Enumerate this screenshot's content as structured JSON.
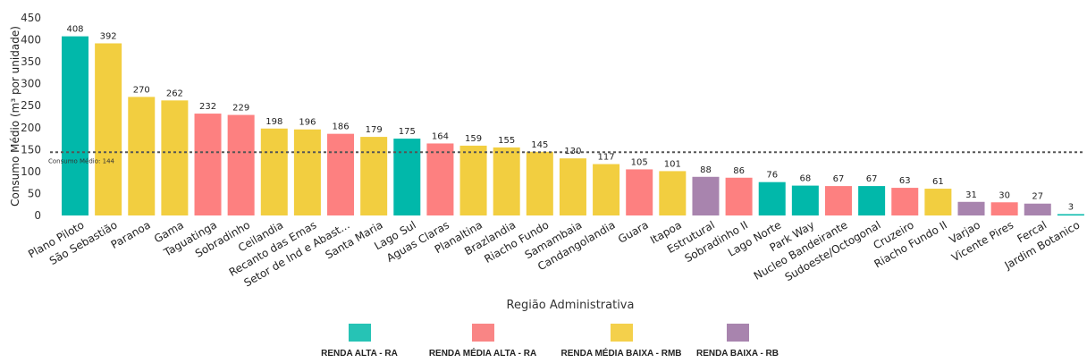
{
  "chart_data": {
    "type": "bar",
    "xlabel": "Região Administrativa",
    "ylabel": "Consumo Médio (m³ por unidade)",
    "ylim": [
      0,
      450
    ],
    "yticks": [
      0,
      50,
      100,
      150,
      200,
      250,
      300,
      350,
      400,
      450
    ],
    "grid": false,
    "legend_position": "bottom",
    "reference_line": {
      "label": "Consumo Médio: 144",
      "value": 144
    },
    "categories": [
      "Plano Piloto",
      "São Sebastião",
      "Paranoa",
      "Gama",
      "Taguatinga",
      "Sobradinho",
      "Ceilandia",
      "Recanto das Emas",
      "Setor de Ind e Abast...",
      "Santa Maria",
      "Lago Sul",
      "Aguas Claras",
      "Planaltina",
      "Brazlandia",
      "Riacho Fundo",
      "Samambaia",
      "Candangolandia",
      "Guara",
      "Itapoa",
      "Estrutural",
      "Sobradinho II",
      "Lago Norte",
      "Park Way",
      "Nucleo Bandeirante",
      "Sudoeste/Octogonal",
      "Cruzeiro",
      "Riacho Fundo II",
      "Varjao",
      "Vicente Pires",
      "Fercal",
      "Jardim Botanico"
    ],
    "values": [
      408,
      392,
      270,
      262,
      232,
      229,
      198,
      196,
      186,
      179,
      175,
      164,
      159,
      155,
      145,
      130,
      117,
      105,
      101,
      88,
      86,
      76,
      68,
      67,
      67,
      63,
      61,
      31,
      30,
      27,
      3
    ],
    "groups": [
      "RA",
      "RMB",
      "RMB",
      "RMB",
      "RMA",
      "RMA",
      "RMB",
      "RMB",
      "RMA",
      "RMB",
      "RA",
      "RMA",
      "RMB",
      "RMB",
      "RMB",
      "RMB",
      "RMB",
      "RMA",
      "RMB",
      "RB",
      "RMA",
      "RA",
      "RA",
      "RMA",
      "RA",
      "RMA",
      "RMB",
      "RB",
      "RMA",
      "RB",
      "RA"
    ],
    "group_colors": {
      "RA": "#01B8AA",
      "RMA": "#FD8080",
      "RMB": "#F2CE40",
      "RB": "#A884AE"
    },
    "legend": [
      {
        "key": "RA",
        "label": "RENDA ALTA - RA",
        "color": "#26C3B5"
      },
      {
        "key": "RMA",
        "label": "RENDA MÉDIA ALTA - RA",
        "color": "#F98585"
      },
      {
        "key": "RMB",
        "label": "RENDA MÉDIA BAIXA - RMB",
        "color": "#F4D04B"
      },
      {
        "key": "RB",
        "label": "RENDA BAIXA - RB",
        "color": "#A884AE"
      }
    ]
  }
}
